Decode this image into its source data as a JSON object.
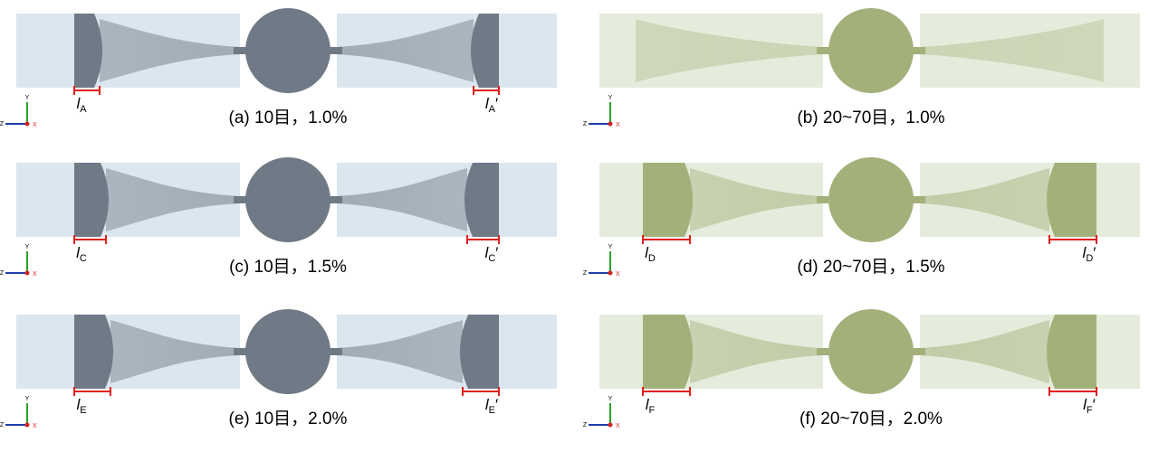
{
  "axis_labels": {
    "y": "Y",
    "z": "Z",
    "x": "X"
  },
  "panels": [
    {
      "caption": "(a) 10目，1.0%",
      "particle_color": "#6f7a86",
      "left_label": {
        "main": "l",
        "sub": "A"
      },
      "right_label": {
        "main": "l",
        "sub": "A",
        "prime": "′"
      }
    },
    {
      "caption": "(b) 20~70目，1.0%",
      "particle_color": "#a3b07a"
    },
    {
      "caption": "(c) 10目，1.5%",
      "particle_color": "#6f7a86",
      "left_label": {
        "main": "l",
        "sub": "C"
      },
      "right_label": {
        "main": "l",
        "sub": "C",
        "prime": "′"
      }
    },
    {
      "caption": "(d) 20~70目，1.5%",
      "particle_color": "#a3b07a",
      "left_label": {
        "main": "l",
        "sub": "D"
      },
      "right_label": {
        "main": "l",
        "sub": "D",
        "prime": "′"
      }
    },
    {
      "caption": "(e) 10目，2.0%",
      "particle_color": "#6f7a86",
      "left_label": {
        "main": "l",
        "sub": "E"
      },
      "right_label": {
        "main": "l",
        "sub": "E",
        "prime": "′"
      }
    },
    {
      "caption": "(f) 20~70目，2.0%",
      "particle_color": "#a3b07a",
      "left_label": {
        "main": "l",
        "sub": "F"
      },
      "right_label": {
        "main": "l",
        "sub": "F",
        "prime": "′"
      }
    }
  ]
}
